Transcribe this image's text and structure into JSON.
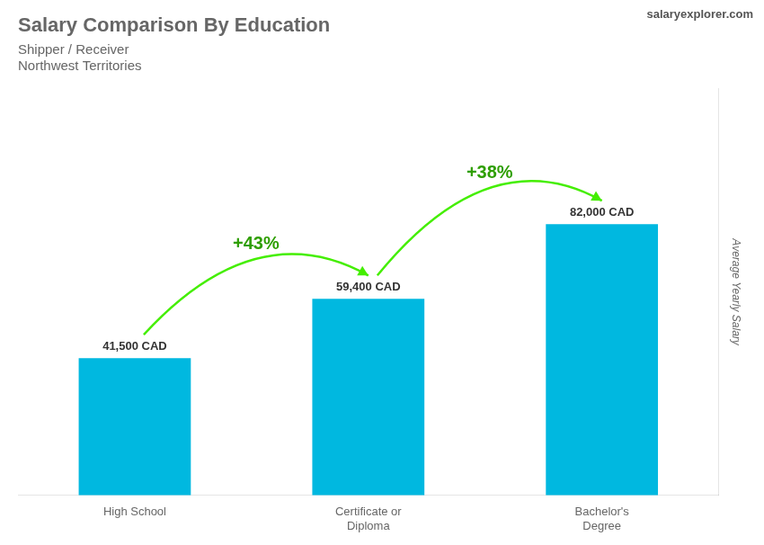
{
  "chart_data": {
    "type": "bar",
    "title": "Salary Comparison By Education",
    "subtitle": [
      "Shipper / Receiver",
      "Northwest Territories"
    ],
    "annotations": [
      "salaryexplorer.com"
    ],
    "categories": [
      "High School",
      "Certificate or\nDiploma",
      "Bachelor's\nDegree"
    ],
    "values": [
      41500,
      59400,
      82000
    ],
    "value_labels": [
      "41,500 CAD",
      "59,400 CAD",
      "82,000 CAD"
    ],
    "data_labels": true,
    "color": "#00b8e0",
    "ylabel": "Average Yearly Salary",
    "ylim": [
      0,
      123000
    ],
    "tick_labels": "x",
    "grid": false,
    "arrows": [
      {
        "value": 43,
        "label": "+43%",
        "color": "#44ee00"
      },
      {
        "value": 38,
        "label": "+38%",
        "color": "#44ee00"
      }
    ]
  }
}
